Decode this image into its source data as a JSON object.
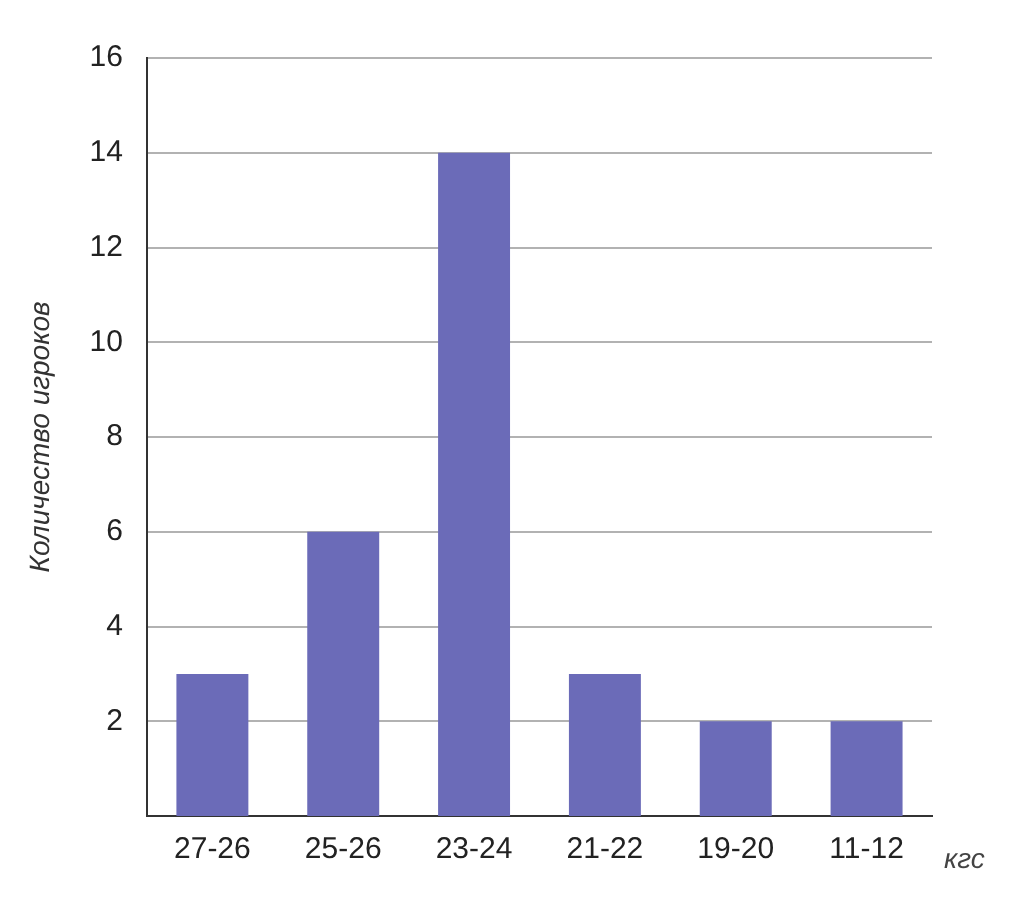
{
  "chart_data": {
    "type": "bar",
    "ylabel": "Количество игроков",
    "xlabel": "кгс",
    "categories": [
      "27-26",
      "25-26",
      "23-24",
      "21-22",
      "19-20",
      "11-12"
    ],
    "values": [
      3,
      6,
      14,
      3,
      2,
      2
    ],
    "color": "#6b6bb8",
    "ylim": [
      0,
      16
    ],
    "yticks": [
      2,
      4,
      6,
      8,
      10,
      12,
      14,
      16
    ],
    "grid": "y",
    "legend": false
  }
}
